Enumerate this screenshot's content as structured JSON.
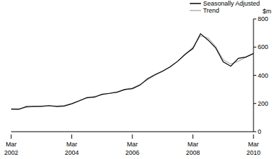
{
  "chart_data": {
    "type": "line",
    "y_label": "$m",
    "categories": [
      "Mar 2002",
      null,
      null,
      null,
      null,
      null,
      null,
      null,
      "Mar 2004",
      null,
      null,
      null,
      null,
      null,
      null,
      null,
      "Mar 2006",
      null,
      null,
      null,
      null,
      null,
      null,
      null,
      "Mar 2008",
      null,
      null,
      null,
      null,
      null,
      null,
      null,
      "Mar 2010"
    ],
    "series": [
      {
        "name": "Seasonally Adjusted",
        "color": "#000000",
        "values": [
          160,
          158,
          178,
          180,
          180,
          185,
          178,
          182,
          198,
          220,
          242,
          245,
          265,
          272,
          280,
          300,
          305,
          330,
          375,
          405,
          430,
          460,
          500,
          550,
          590,
          695,
          650,
          595,
          495,
          465,
          520,
          530,
          555
        ]
      },
      {
        "name": "Trend",
        "color": "#b0b0b0",
        "values": [
          162,
          165,
          172,
          178,
          182,
          183,
          182,
          186,
          198,
          218,
          238,
          250,
          262,
          272,
          283,
          296,
          310,
          335,
          368,
          400,
          428,
          462,
          502,
          548,
          600,
          680,
          665,
          605,
          510,
          480,
          500,
          528,
          552
        ]
      }
    ],
    "ylim": [
      0,
      800
    ],
    "yticks": [
      0,
      200,
      400,
      600,
      800
    ],
    "legend": "top-right",
    "grid": false
  }
}
